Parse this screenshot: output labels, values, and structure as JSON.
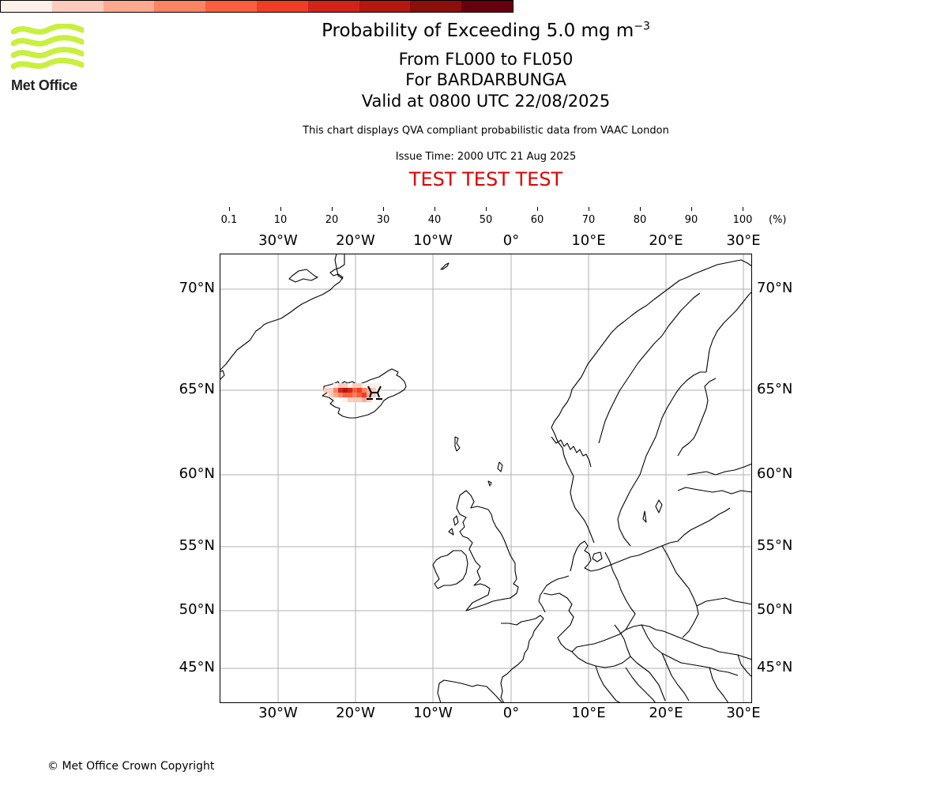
{
  "header": {
    "title_main": "Probability of Exceeding 5.0 mg m",
    "title_exp": "−3",
    "flight_levels": "From FL000 to FL050",
    "volcano": "For BARDARBUNGA",
    "valid_time": "Valid at 0800 UTC 22/08/2025",
    "disclaimer": "This chart displays QVA compliant probabilistic data from VAAC London",
    "issue_time": "Issue Time: 2000 UTC 21 Aug 2025",
    "test_banner": "TEST TEST TEST"
  },
  "logo": {
    "name": "Met Office",
    "color": "#c8f03c"
  },
  "colorbar": {
    "unit": "(%)",
    "tick_labels": [
      "0.1",
      "10",
      "20",
      "30",
      "40",
      "50",
      "60",
      "70",
      "80",
      "90",
      "100"
    ],
    "colors": [
      "#fff0ea",
      "#fdcbbb",
      "#fca98f",
      "#fc8363",
      "#fb5d3e",
      "#f03d24",
      "#d42419",
      "#b5180f",
      "#8c0f09",
      "#67000d"
    ]
  },
  "map": {
    "projection": "equirectangular",
    "lon_range": [
      -37.5,
      31
    ],
    "lat_range": [
      42.6,
      71.1
    ],
    "gridlines": true,
    "lon_ticks": [
      "30°W",
      "20°W",
      "10°W",
      "0°",
      "10°E",
      "20°E",
      "30°E"
    ],
    "lat_ticks": [
      "70°N",
      "65°N",
      "60°N",
      "55°N",
      "50°N",
      "45°N"
    ],
    "volcano_marker": {
      "name": "BARDARBUNGA",
      "symbol": "volcano-icon"
    }
  },
  "footer": {
    "copyright": "© Met Office Crown Copyright"
  }
}
